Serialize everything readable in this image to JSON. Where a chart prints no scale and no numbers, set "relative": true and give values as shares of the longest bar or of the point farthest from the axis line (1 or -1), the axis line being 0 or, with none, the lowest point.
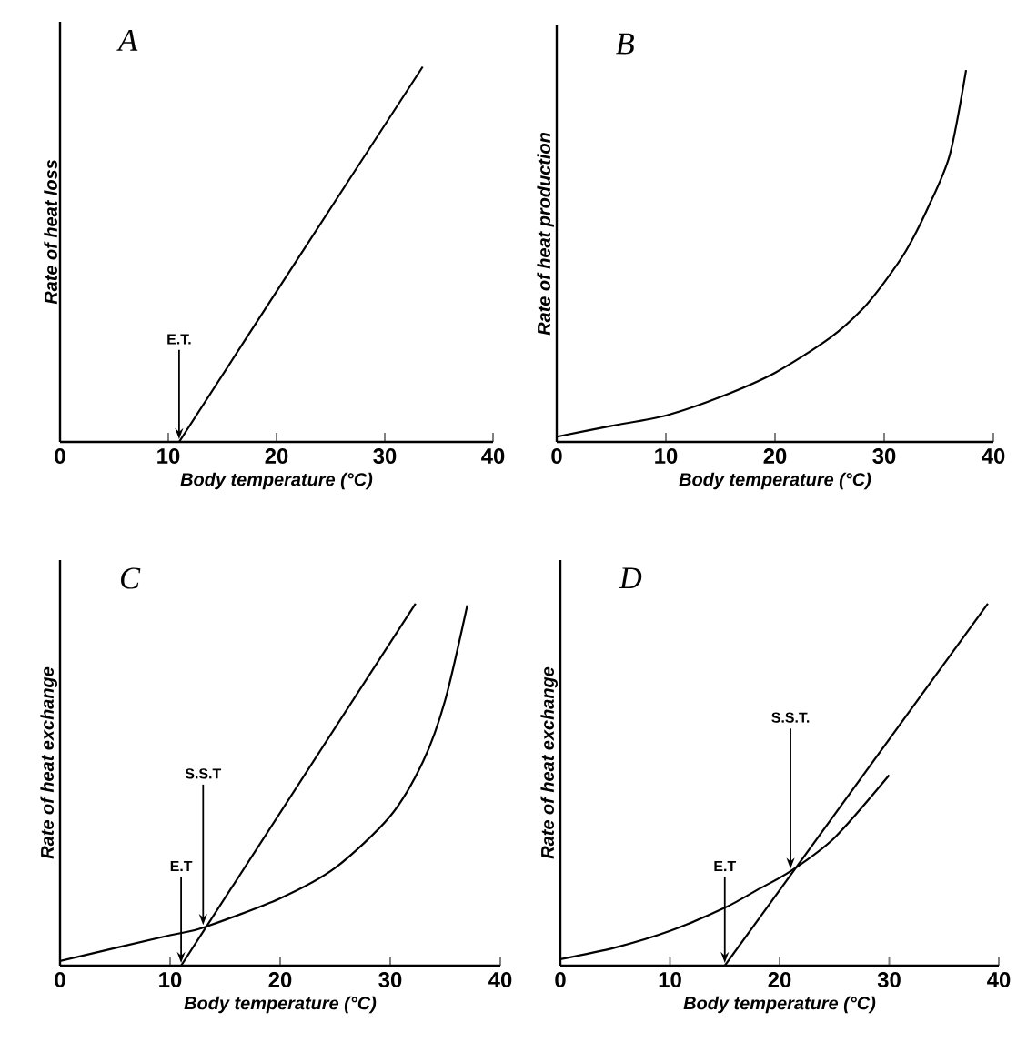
{
  "chart_data": [
    {
      "type": "line",
      "title": "A",
      "xlabel": "Body temperature (°C)",
      "ylabel": "Rate of heat loss",
      "xlim": [
        0,
        40
      ],
      "xticks": [
        0,
        10,
        20,
        30,
        40
      ],
      "relative": true,
      "series": [
        {
          "color": "#000000",
          "x": [
            11,
            22,
            33.5
          ],
          "values": [
            0,
            0.49,
            1
          ]
        }
      ],
      "annotations": [
        {
          "text": "E.T.",
          "x": 11,
          "y": 0
        }
      ]
    },
    {
      "type": "line",
      "title": "B",
      "xlabel": "Body temperature (°C)",
      "ylabel": "Rate of heat production",
      "xlim": [
        0,
        40
      ],
      "xticks": [
        0,
        10,
        20,
        30,
        40
      ],
      "relative": true,
      "series": [
        {
          "color": "#000000",
          "x": [
            0,
            5,
            10,
            15,
            20,
            25,
            28,
            30,
            32,
            34,
            36,
            37.5
          ],
          "values": [
            0.014,
            0.043,
            0.071,
            0.121,
            0.186,
            0.279,
            0.357,
            0.429,
            0.514,
            0.629,
            0.771,
            1.0
          ]
        }
      ]
    },
    {
      "type": "line",
      "title": "C",
      "xlabel": "Body temperature (°C)",
      "ylabel": "Rate of heat exchange",
      "xlim": [
        0,
        40
      ],
      "xticks": [
        0,
        10,
        20,
        30,
        40
      ],
      "relative": true,
      "series": [
        {
          "color": "#000000",
          "x": [
            11,
            32.3
          ],
          "values": [
            0,
            1
          ]
        },
        {
          "color": "#000000",
          "x": [
            0,
            10,
            13,
            20,
            25,
            30,
            33,
            35,
            37
          ],
          "values": [
            0.013,
            0.084,
            0.105,
            0.186,
            0.27,
            0.413,
            0.565,
            0.734,
            0.995
          ]
        }
      ],
      "annotations": [
        {
          "text": "E.T",
          "x": 11,
          "y": 0
        },
        {
          "text": "S.S.T",
          "x": 13,
          "y": 0.105
        }
      ]
    },
    {
      "type": "line",
      "title": "D",
      "xlabel": "Body temperature (°C)",
      "ylabel": "Rate of heat exchange",
      "xlim": [
        0,
        40
      ],
      "xticks": [
        0,
        10,
        20,
        30,
        40
      ],
      "relative": true,
      "series": [
        {
          "color": "#000000",
          "x": [
            15,
            39
          ],
          "values": [
            0,
            1
          ]
        },
        {
          "color": "#000000",
          "x": [
            0,
            5,
            10,
            15,
            18,
            21,
            25,
            30
          ],
          "values": [
            0.018,
            0.05,
            0.096,
            0.16,
            0.21,
            0.261,
            0.353,
            0.526
          ]
        }
      ],
      "annotations": [
        {
          "text": "E.T",
          "x": 15,
          "y": 0
        },
        {
          "text": "S.S.T.",
          "x": 21,
          "y": 0.26
        }
      ]
    }
  ]
}
